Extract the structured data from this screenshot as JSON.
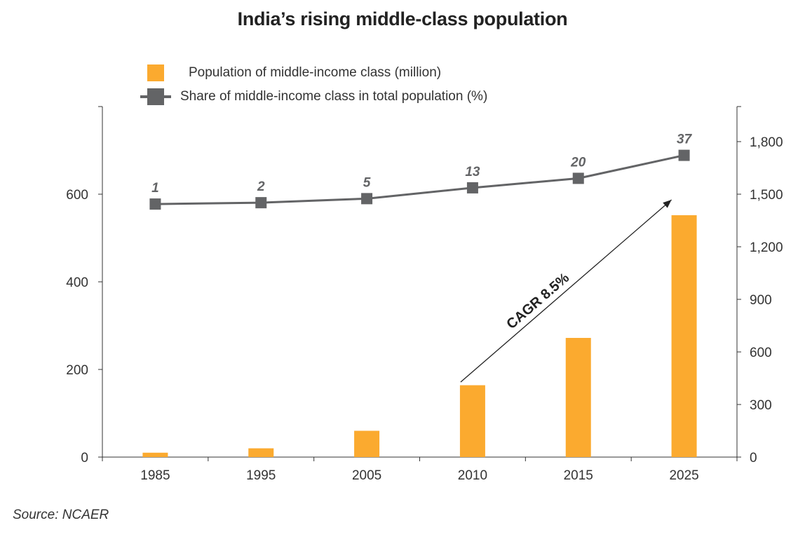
{
  "chart_data": {
    "type": "bar+line",
    "title": "India’s rising middle-class population",
    "categories": [
      "1985",
      "1995",
      "2005",
      "2010",
      "2015",
      "2025"
    ],
    "series": [
      {
        "name": "Population of middle-income class (million)",
        "type": "bar",
        "axis": "right",
        "color": "#FBAA2F",
        "values": [
          25,
          50,
          150,
          410,
          680,
          1380
        ]
      },
      {
        "name": "Share of middle-income class in total population (%)",
        "type": "line",
        "axis": "left",
        "color": "#636466",
        "values": [
          1,
          2,
          5,
          13,
          20,
          37
        ],
        "labels": [
          "1",
          "2",
          "5",
          "13",
          "20",
          "37"
        ]
      }
    ],
    "left_axis": {
      "ticks": [
        "0",
        "200",
        "400",
        "600"
      ],
      "tick_values": [
        0,
        200,
        400,
        600
      ]
    },
    "right_axis": {
      "ticks": [
        "0",
        "300",
        "600",
        "900",
        "1,200",
        "1,500",
        "1,800"
      ],
      "tick_values": [
        0,
        300,
        600,
        900,
        1200,
        1500,
        1800
      ],
      "ylim": [
        0,
        2000
      ]
    },
    "annotation": {
      "text": "CAGR 8.5%",
      "from_category": "2010",
      "to_category": "2025"
    },
    "legend_position": "top-left"
  },
  "source": "Source: NCAER"
}
